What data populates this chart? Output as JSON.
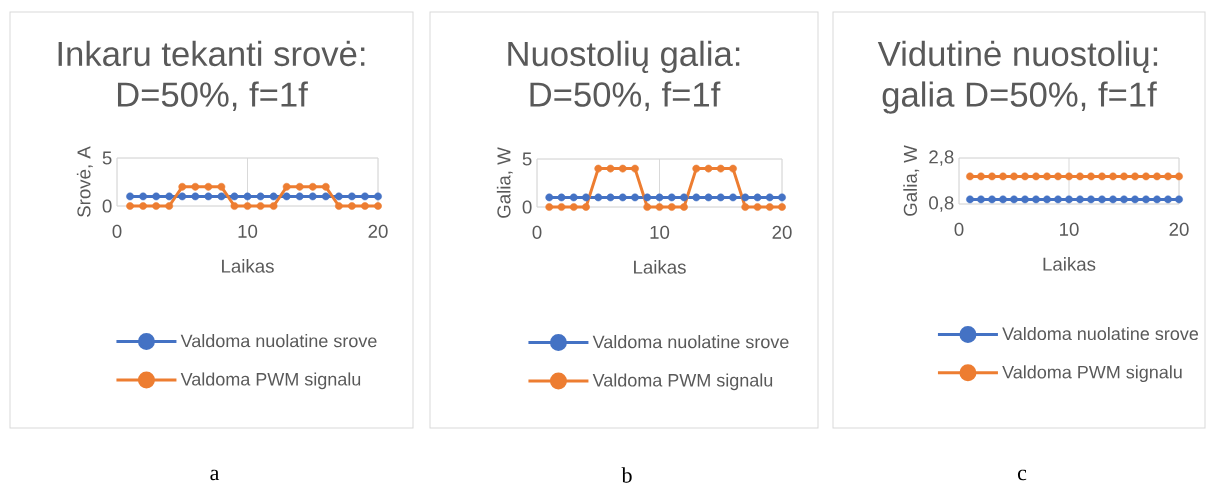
{
  "chart_data": [
    {
      "type": "line",
      "title": "Inkaru tekanti srovė: D=50%, f=1f",
      "xlabel": "Laikas",
      "ylabel": "Srovė, A",
      "x": [
        1,
        2,
        3,
        4,
        5,
        6,
        7,
        8,
        9,
        10,
        11,
        12,
        13,
        14,
        15,
        16,
        17,
        18,
        19,
        20
      ],
      "xlim": [
        0,
        20
      ],
      "xticks": [
        0,
        10,
        20
      ],
      "ylim": [
        0,
        5
      ],
      "yticks": [
        0,
        5
      ],
      "grid": true,
      "legend": "bottom",
      "marker": "circle",
      "line_style": "solid",
      "annotations": [
        "a"
      ],
      "series": [
        {
          "name": "Valdoma nuolatine srove",
          "color": "#4472c4",
          "values": [
            1,
            1,
            1,
            1,
            1,
            1,
            1,
            1,
            1,
            1,
            1,
            1,
            1,
            1,
            1,
            1,
            1,
            1,
            1,
            1
          ]
        },
        {
          "name": "Valdoma PWM signalu",
          "color": "#ed7d31",
          "values": [
            0,
            0,
            0,
            0,
            2,
            2,
            2,
            2,
            0,
            0,
            0,
            0,
            2,
            2,
            2,
            2,
            0,
            0,
            0,
            0
          ]
        }
      ]
    },
    {
      "type": "line",
      "title": "Nuostolių galia: D=50%, f=1f",
      "xlabel": "Laikas",
      "ylabel": "Galia, W",
      "x": [
        1,
        2,
        3,
        4,
        5,
        6,
        7,
        8,
        9,
        10,
        11,
        12,
        13,
        14,
        15,
        16,
        17,
        18,
        19,
        20
      ],
      "xlim": [
        0,
        20
      ],
      "xticks": [
        0,
        10,
        20
      ],
      "ylim": [
        0,
        5
      ],
      "yticks": [
        0,
        5
      ],
      "grid": true,
      "legend": "bottom",
      "marker": "circle",
      "line_style": "solid",
      "annotations": [
        "b"
      ],
      "series": [
        {
          "name": "Valdoma nuolatine srove",
          "color": "#4472c4",
          "values": [
            1,
            1,
            1,
            1,
            1,
            1,
            1,
            1,
            1,
            1,
            1,
            1,
            1,
            1,
            1,
            1,
            1,
            1,
            1,
            1
          ]
        },
        {
          "name": "Valdoma PWM signalu",
          "color": "#ed7d31",
          "values": [
            0,
            0,
            0,
            0,
            4,
            4,
            4,
            4,
            0,
            0,
            0,
            0,
            4,
            4,
            4,
            4,
            0,
            0,
            0,
            0
          ]
        }
      ]
    },
    {
      "type": "line",
      "title": "Vidutinė nuostolių: galia D=50%, f=1f",
      "xlabel": "Laikas",
      "ylabel": "Galia, W",
      "x": [
        1,
        2,
        3,
        4,
        5,
        6,
        7,
        8,
        9,
        10,
        11,
        12,
        13,
        14,
        15,
        16,
        17,
        18,
        19,
        20
      ],
      "xlim": [
        0,
        20
      ],
      "xticks": [
        0,
        10,
        20
      ],
      "ylim": [
        0.8,
        2.8
      ],
      "yticks": [
        {
          "value": 0.8,
          "label": "0,8"
        },
        {
          "value": 2.8,
          "label": "2,8"
        }
      ],
      "grid": true,
      "legend": "bottom",
      "marker": "circle",
      "line_style": "solid",
      "annotations": [
        "c"
      ],
      "series": [
        {
          "name": "Valdoma nuolatine srove",
          "color": "#4472c4",
          "values": [
            1,
            1,
            1,
            1,
            1,
            1,
            1,
            1,
            1,
            1,
            1,
            1,
            1,
            1,
            1,
            1,
            1,
            1,
            1,
            1
          ]
        },
        {
          "name": "Valdoma PWM signalu",
          "color": "#ed7d31",
          "values": [
            2,
            2,
            2,
            2,
            2,
            2,
            2,
            2,
            2,
            2,
            2,
            2,
            2,
            2,
            2,
            2,
            2,
            2,
            2,
            2
          ]
        }
      ]
    }
  ]
}
